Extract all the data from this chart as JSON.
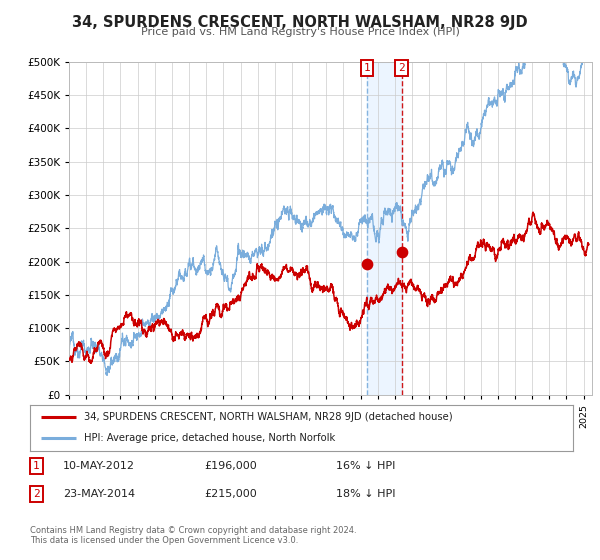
{
  "title": "34, SPURDENS CRESCENT, NORTH WALSHAM, NR28 9JD",
  "subtitle": "Price paid vs. HM Land Registry's House Price Index (HPI)",
  "legend_line1": "34, SPURDENS CRESCENT, NORTH WALSHAM, NR28 9JD (detached house)",
  "legend_line2": "HPI: Average price, detached house, North Norfolk",
  "annotation1_label": "1",
  "annotation1_date": "10-MAY-2012",
  "annotation1_price": "£196,000",
  "annotation1_hpi": "16% ↓ HPI",
  "annotation2_label": "2",
  "annotation2_date": "23-MAY-2014",
  "annotation2_price": "£215,000",
  "annotation2_hpi": "18% ↓ HPI",
  "footnote1": "Contains HM Land Registry data © Crown copyright and database right 2024.",
  "footnote2": "This data is licensed under the Open Government Licence v3.0.",
  "red_color": "#cc0000",
  "blue_color": "#7aaddc",
  "background_color": "#ffffff",
  "grid_color": "#cccccc",
  "vline1_color": "#7aaddc",
  "vline2_color": "#cc0000",
  "shade_color": "#ddeeff",
  "sale1_year": 2012.37,
  "sale2_year": 2014.39,
  "sale1_price": 196000,
  "sale2_price": 215000,
  "ylim_max": 500000,
  "ylim_min": 0,
  "xmin": 1995,
  "xmax": 2025.5
}
